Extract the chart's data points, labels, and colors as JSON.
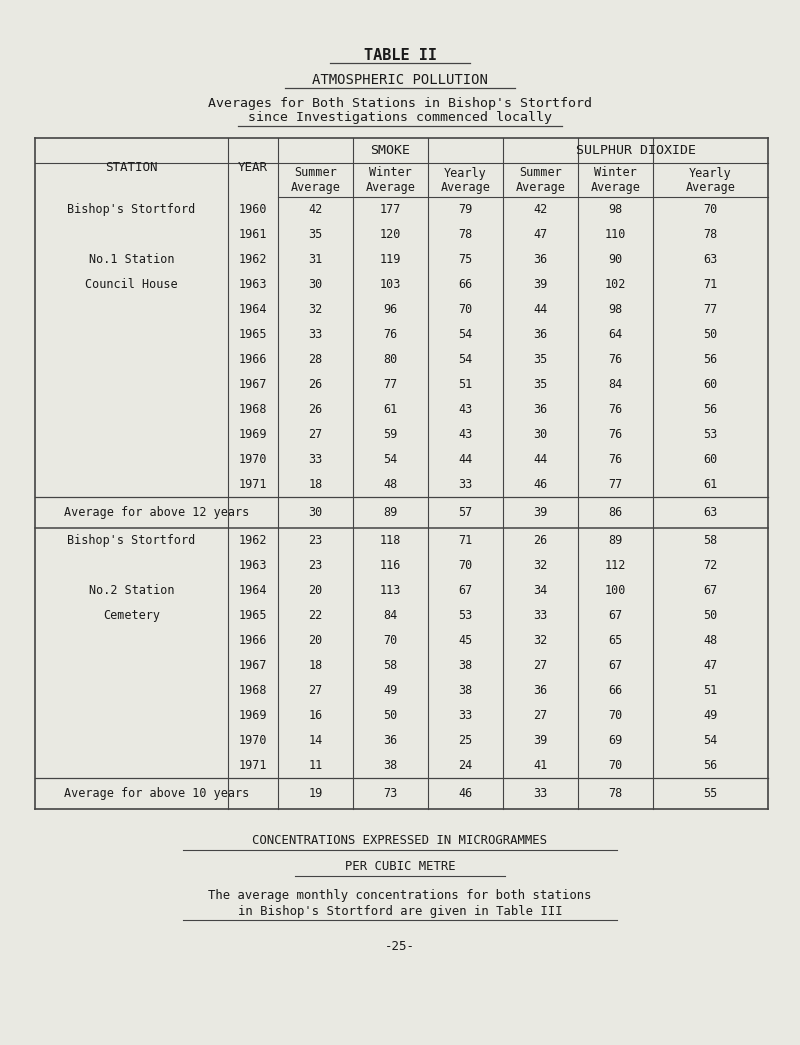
{
  "title1": "TABLE II",
  "title2": "ATMOSPHERIC POLLUTION",
  "title3": "Averages for Both Stations in Bishop's Stortford",
  "title4": "since Investigations commenced locally",
  "bg_color": "#e9e9e2",
  "text_color": "#1a1a1a",
  "line_color": "#444444",
  "station1_rows": [
    [
      1960,
      42,
      177,
      79,
      42,
      98,
      70
    ],
    [
      1961,
      35,
      120,
      78,
      47,
      110,
      78
    ],
    [
      1962,
      31,
      119,
      75,
      36,
      90,
      63
    ],
    [
      1963,
      30,
      103,
      66,
      39,
      102,
      71
    ],
    [
      1964,
      32,
      96,
      70,
      44,
      98,
      77
    ],
    [
      1965,
      33,
      76,
      54,
      36,
      64,
      50
    ],
    [
      1966,
      28,
      80,
      54,
      35,
      76,
      56
    ],
    [
      1967,
      26,
      77,
      51,
      35,
      84,
      60
    ],
    [
      1968,
      26,
      61,
      43,
      36,
      76,
      56
    ],
    [
      1969,
      27,
      59,
      43,
      30,
      76,
      53
    ],
    [
      1970,
      33,
      54,
      44,
      44,
      76,
      60
    ],
    [
      1971,
      18,
      48,
      33,
      46,
      77,
      61
    ]
  ],
  "station1_avg": [
    30,
    89,
    57,
    39,
    86,
    63
  ],
  "station2_rows": [
    [
      1962,
      23,
      118,
      71,
      26,
      89,
      58
    ],
    [
      1963,
      23,
      116,
      70,
      32,
      112,
      72
    ],
    [
      1964,
      20,
      113,
      67,
      34,
      100,
      67
    ],
    [
      1965,
      22,
      84,
      53,
      33,
      67,
      50
    ],
    [
      1966,
      20,
      70,
      45,
      32,
      65,
      48
    ],
    [
      1967,
      18,
      58,
      38,
      27,
      67,
      47
    ],
    [
      1968,
      27,
      49,
      38,
      36,
      66,
      51
    ],
    [
      1969,
      16,
      50,
      33,
      27,
      70,
      49
    ],
    [
      1970,
      14,
      36,
      25,
      39,
      69,
      54
    ],
    [
      1971,
      11,
      38,
      24,
      41,
      70,
      56
    ]
  ],
  "station2_avg": [
    19,
    73,
    46,
    33,
    78,
    55
  ],
  "footer1": "CONCENTRATIONS EXPRESSED IN MICROGRAMMES",
  "footer2": "PER CUBIC METRE",
  "footer3": "The average monthly concentrations for both stations",
  "footer4": "in Bishop's Stortford are given in Table III",
  "page_num": "-25-"
}
